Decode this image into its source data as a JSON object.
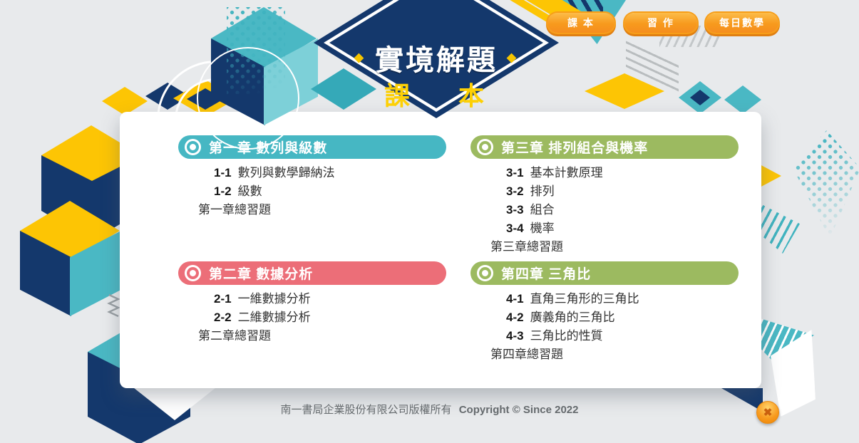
{
  "logo": {
    "title": "實境解題",
    "subtitle": "課 本",
    "accent_diamond": "◆"
  },
  "nav": {
    "buttons": [
      {
        "id": "textbook",
        "label": "課 本"
      },
      {
        "id": "workbook",
        "label": "習 作"
      },
      {
        "id": "daily-math",
        "label": "每日數學"
      }
    ]
  },
  "chapters": [
    {
      "title": "第一章 數列與級數",
      "color": "#46b7c3",
      "items": [
        {
          "num": "1-1",
          "label": "數列與數學歸納法"
        },
        {
          "num": "1-2",
          "label": "級數"
        },
        {
          "num": "",
          "label": "第一章總習題"
        }
      ]
    },
    {
      "title": "第二章 數據分析",
      "color": "#ec6e78",
      "items": [
        {
          "num": "2-1",
          "label": "一維數據分析"
        },
        {
          "num": "2-2",
          "label": "二維數據分析"
        },
        {
          "num": "",
          "label": "第二章總習題"
        }
      ]
    },
    {
      "title": "第三章 排列組合與機率",
      "color": "#9cba60",
      "items": [
        {
          "num": "3-1",
          "label": "基本計數原理"
        },
        {
          "num": "3-2",
          "label": "排列"
        },
        {
          "num": "3-3",
          "label": "組合"
        },
        {
          "num": "3-4",
          "label": "機率"
        },
        {
          "num": "",
          "label": "第三章總習題"
        }
      ]
    },
    {
      "title": "第四章 三角比",
      "color": "#9cba60",
      "items": [
        {
          "num": "4-1",
          "label": "直角三角形的三角比"
        },
        {
          "num": "4-2",
          "label": "廣義角的三角比"
        },
        {
          "num": "4-3",
          "label": "三角比的性質"
        },
        {
          "num": "",
          "label": "第四章總習題"
        }
      ]
    }
  ],
  "footer": {
    "copyright_zh": "南一書局企業股份有限公司版權所有",
    "copyright_en": "Copyright © Since 2022"
  },
  "close_button": {
    "glyph": "✖"
  },
  "colors": {
    "background": "#e8eaec",
    "navy": "#14386c",
    "teal": "#46b7c3",
    "teal_light": "#7dd0d8",
    "yellow": "#fdc504",
    "red": "#ec6e78",
    "green": "#9cba60",
    "button_orange": "#f79a1d"
  }
}
